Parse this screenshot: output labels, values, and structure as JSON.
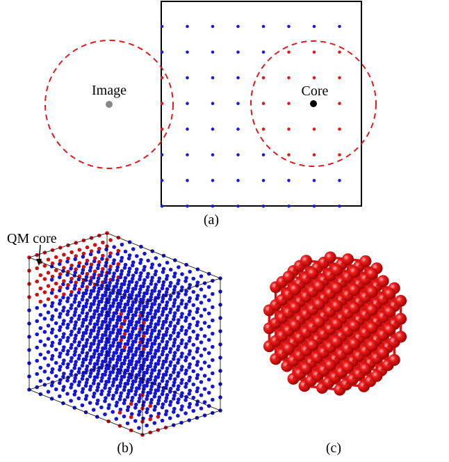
{
  "panel_a": {
    "image_label": "Image",
    "core_label": "Core",
    "caption": "(a)"
  },
  "panel_b": {
    "qm_core_label": "QM core",
    "caption": "(b)"
  },
  "panel_c": {
    "caption": "(c)"
  }
}
